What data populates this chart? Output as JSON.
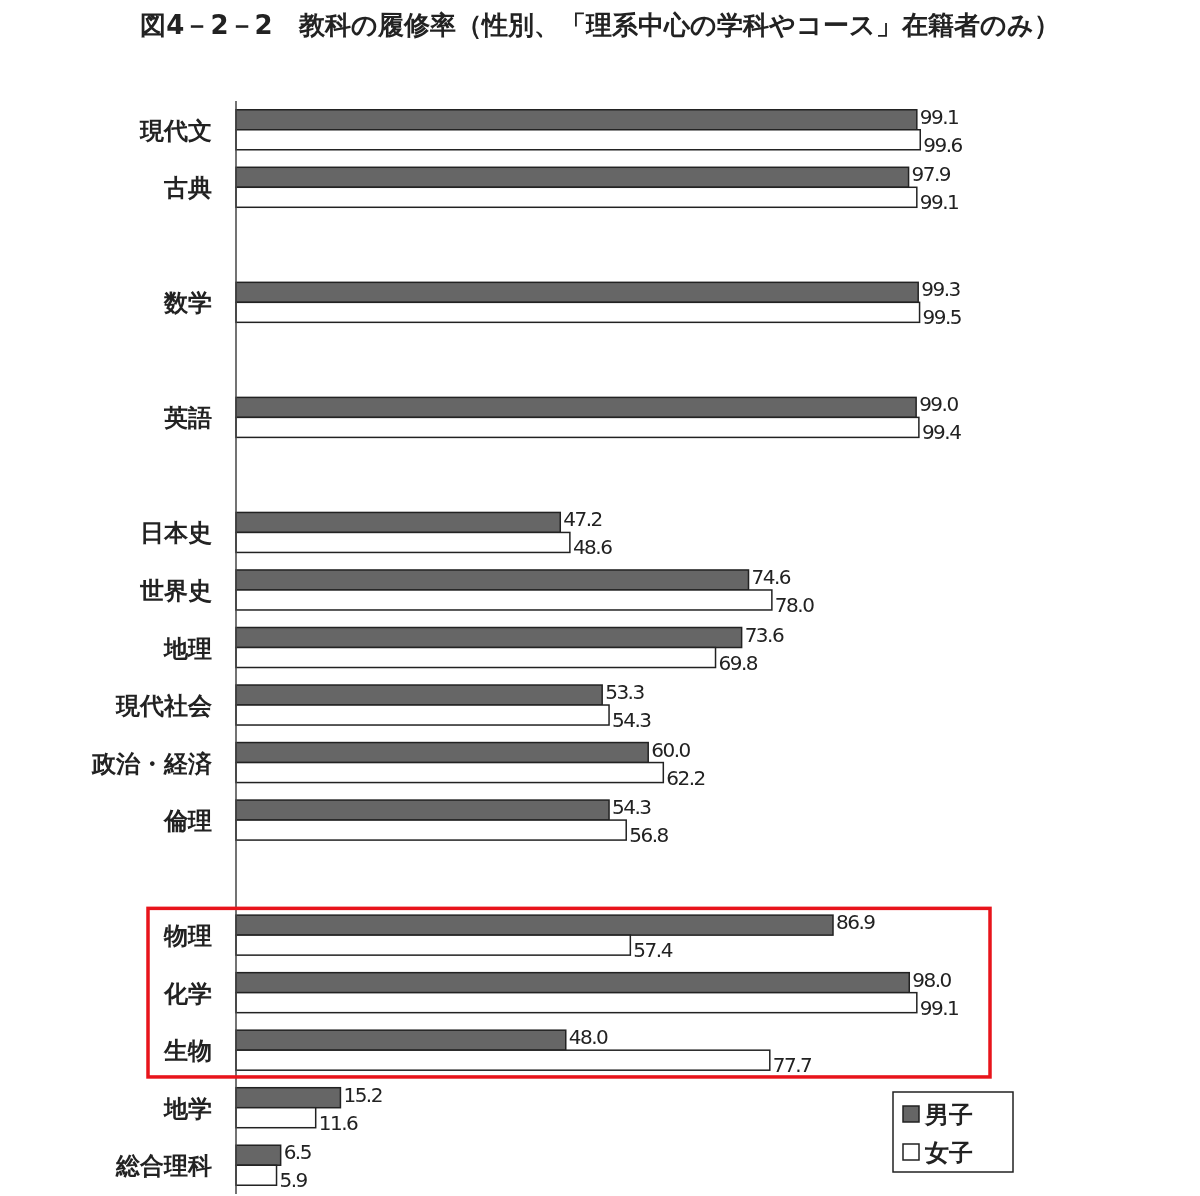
{
  "chart_data": {
    "type": "bar",
    "orientation": "horizontal",
    "title": "図4－2－2　教科の履修率（性別、「理系中心の学科やコース」在籍者のみ）",
    "categories": [
      "現代文",
      "古典",
      null,
      "数学",
      null,
      "英語",
      null,
      "日本史",
      "世界史",
      "地理",
      "現代社会",
      "政治・経済",
      "倫理",
      null,
      "物理",
      "化学",
      "生物",
      "地学",
      "総合理科"
    ],
    "series": [
      {
        "name": "男子",
        "color": "#666666",
        "values": [
          99.1,
          97.9,
          null,
          99.3,
          null,
          99.0,
          null,
          47.2,
          74.6,
          73.6,
          53.3,
          60.0,
          54.3,
          null,
          86.9,
          98.0,
          48.0,
          15.2,
          6.5
        ],
        "value_labels": [
          "99.1",
          "97.9",
          null,
          "99.3",
          null,
          "99.0",
          null,
          "47.2",
          "74.6",
          "73.6",
          "53.3",
          "60.0",
          "54.3",
          null,
          "86.9",
          "98.0",
          "48.0",
          "15.2",
          "6.5"
        ]
      },
      {
        "name": "女子",
        "color": "#ffffff",
        "values": [
          99.6,
          99.1,
          null,
          99.5,
          null,
          99.4,
          null,
          48.6,
          78.0,
          69.8,
          54.3,
          62.2,
          56.8,
          null,
          57.4,
          99.1,
          77.7,
          11.6,
          5.9
        ],
        "value_labels": [
          "99.6",
          "99.1",
          null,
          "99.5",
          null,
          "99.4",
          null,
          "48.6",
          "78.0",
          "69.8",
          "54.3",
          "62.2",
          "56.8",
          null,
          "57.4",
          "99.1",
          "77.7",
          "11.6",
          "5.9"
        ]
      }
    ],
    "xlim": [
      0,
      100
    ],
    "tick_labels": "y",
    "legend": "bottom right"
  }
}
